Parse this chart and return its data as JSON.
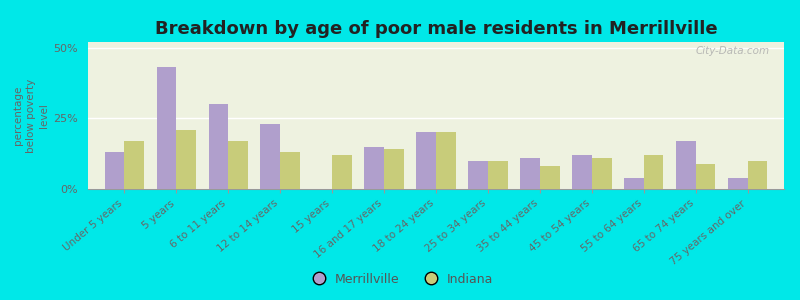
{
  "title": "Breakdown by age of poor male residents in Merrillville",
  "categories": [
    "Under 5 years",
    "5 years",
    "6 to 11 years",
    "12 to 14 years",
    "15 years",
    "16 and 17 years",
    "18 to 24 years",
    "25 to 34 years",
    "35 to 44 years",
    "45 to 54 years",
    "55 to 64 years",
    "65 to 74 years",
    "75 years and over"
  ],
  "merrillville": [
    13,
    43,
    30,
    23,
    0,
    15,
    20,
    10,
    11,
    12,
    4,
    17,
    4
  ],
  "indiana": [
    17,
    21,
    17,
    13,
    12,
    14,
    20,
    10,
    8,
    11,
    12,
    9,
    10
  ],
  "merrillville_color": "#b09fcc",
  "indiana_color": "#c8cc7a",
  "ylim": [
    0,
    52
  ],
  "yticks": [
    0,
    25,
    50
  ],
  "ytick_labels": [
    "0%",
    "25%",
    "50%"
  ],
  "ylabel": "percentage\nbelow poverty\nlevel",
  "plot_bg": "#eef2e0",
  "outer_bg": "#00e8e8",
  "title_fontsize": 13,
  "bar_width": 0.38,
  "legend_labels": [
    "Merrillville",
    "Indiana"
  ],
  "watermark": "City-Data.com"
}
